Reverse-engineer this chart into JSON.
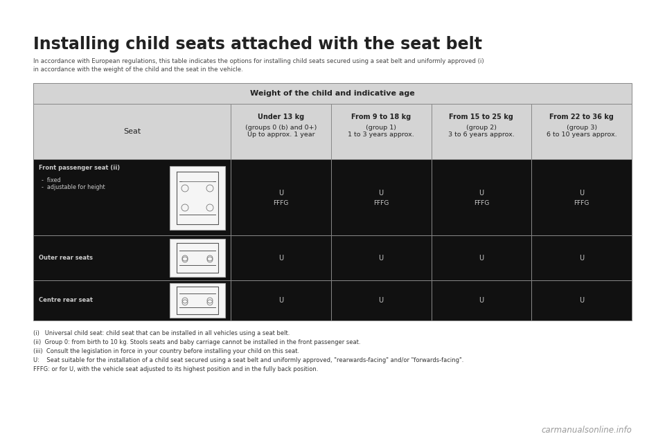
{
  "bg_color": "#ffffff",
  "page_bg": "#ffffff",
  "title": "Installing child seats attached with the seat belt",
  "subtitle_line1": "In accordance with European regulations, this table indicates the options for installing child seats secured using a seat belt and uniformly approved (i)",
  "subtitle_line2": "in accordance with the weight of the child and the seat in the vehicle.",
  "table_header_main": "Weight of the child and indicative age",
  "col0_header": "Seat",
  "col1_header_bold": "Under 13 kg",
  "col1_header_normal": "(groups 0 (b) and 0+)\nUp to approx. 1 year",
  "col2_header_bold": "From 9 to 18 kg",
  "col2_header_normal": "(group 1)\n1 to 3 years approx.",
  "col3_header_bold": "From 15 to 25 kg",
  "col3_header_normal": "(group 2)\n3 to 6 years approx.",
  "col4_header_bold": "From 22 to 36 kg",
  "col4_header_normal": "(group 3)\n6 to 10 years approx.",
  "row1_label_main": "Front passenger seat (ii)",
  "row1_label_sub": "-  fixed\n-  adjustable for height",
  "row2_label": "Outer rear seats",
  "row3_label": "Centre rear seat",
  "row1_cells": [
    "U\nFFFG",
    "U\nFFFG",
    "U\nFFFG",
    "U\nFFFG"
  ],
  "row2_cells": [
    "U",
    "U",
    "U",
    "U"
  ],
  "row3_cells": [
    "U",
    "U",
    "U",
    "U"
  ],
  "footnotes": [
    "(i)   Universal child seat: child seat that can be installed in all vehicles using a seat belt.",
    "(ii)  Group 0: from birth to 10 kg. Stools seats and baby carriage cannot be installed in the front passenger seat.",
    "(iii)  Consult the legislation in force in your country before installing your child on this seat.",
    "U:    Seat suitable for the installation of a child seat secured using a seat belt and uniformly approved, \"rearwards-facing\" and/or \"forwards-facing\".",
    "FFFG: or for U, with the vehicle seat adjusted to its highest position and in the fully back position."
  ],
  "watermark": "carmanualsonline.info",
  "header_row_bg": "#d4d4d4",
  "data_row_bg": "#111111",
  "label_col_bg": "#111111",
  "table_border": "#888888",
  "header_text": "#222222",
  "data_text": "#cccccc",
  "label_text": "#cccccc",
  "title_color": "#222222",
  "subtitle_color": "#444444",
  "footnote_color": "#333333",
  "watermark_color": "#999999"
}
